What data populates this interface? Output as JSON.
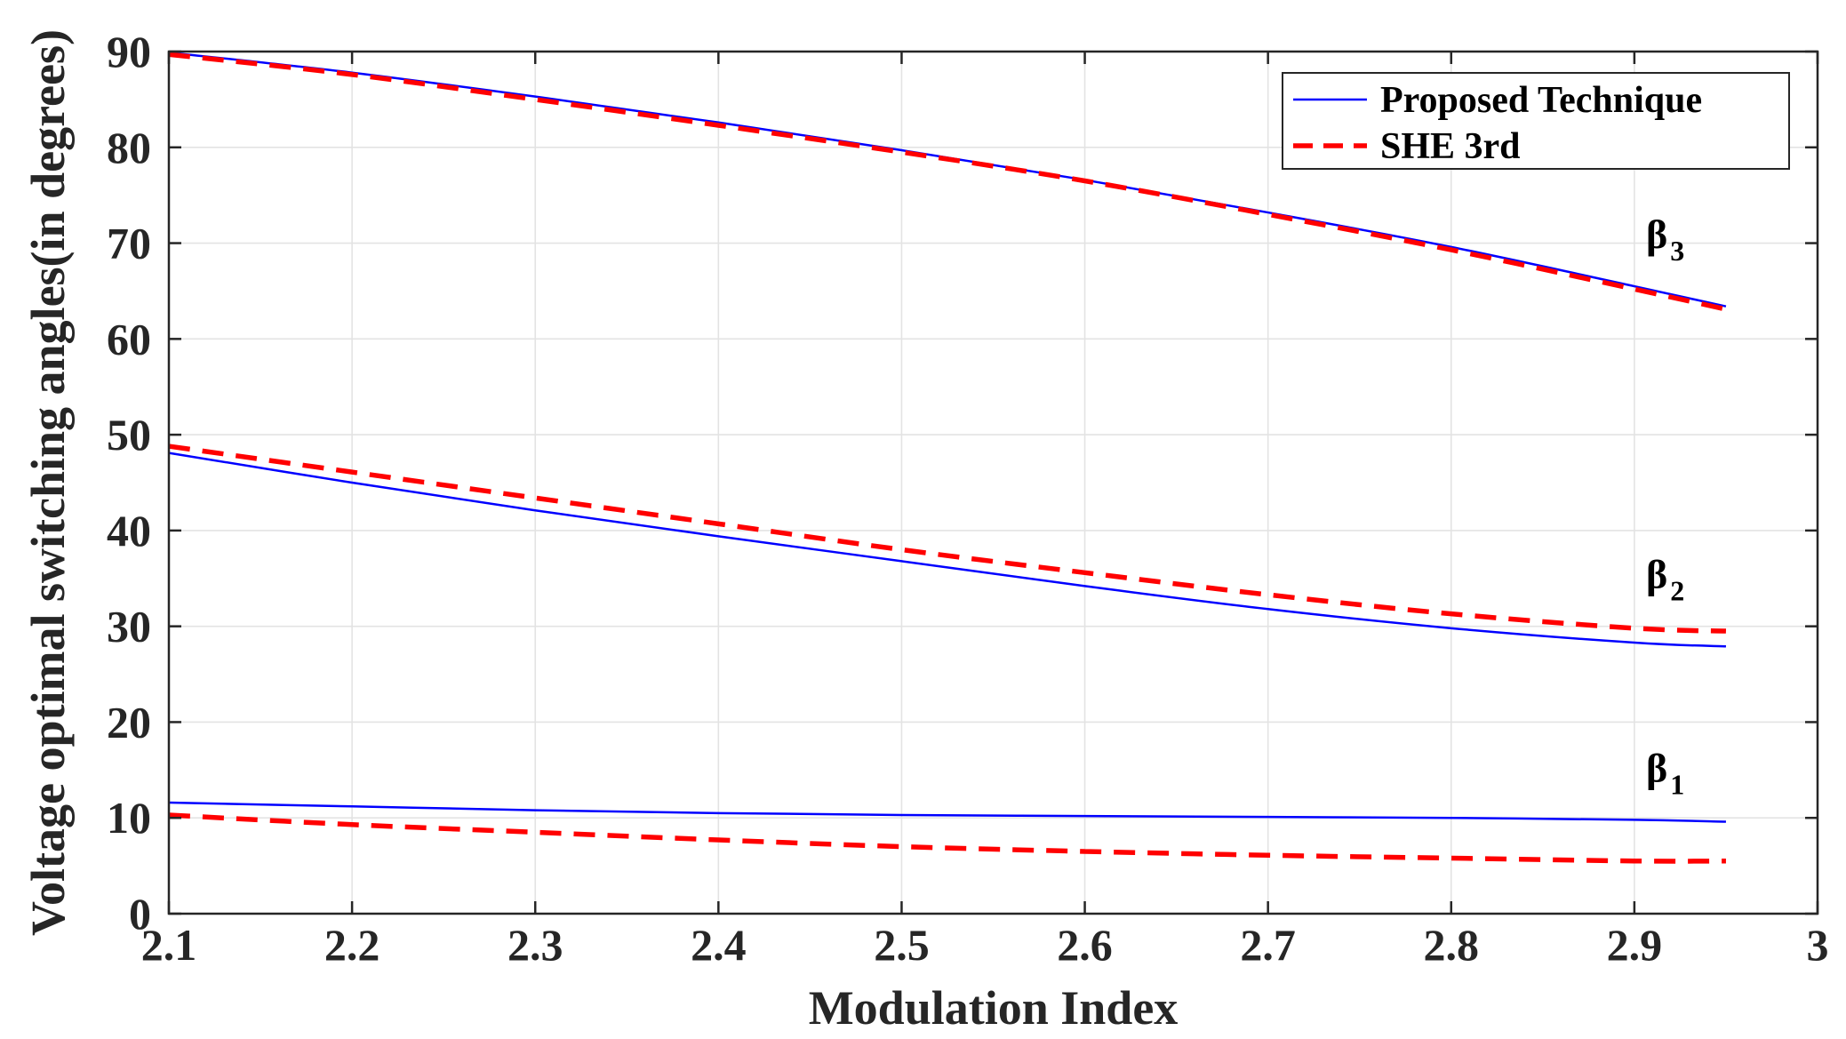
{
  "chart_data": {
    "type": "line",
    "title": "",
    "xlabel": "Modulation Index",
    "ylabel": "Voltage optimal switching angles(in degrees)",
    "xlim": [
      2.1,
      3.0
    ],
    "ylim": [
      0,
      90
    ],
    "grid": true,
    "x_ticks": [
      "2.1",
      "2.2",
      "2.3",
      "2.4",
      "2.5",
      "2.6",
      "2.7",
      "2.8",
      "2.9",
      "3"
    ],
    "y_ticks": [
      "0",
      "10",
      "20",
      "30",
      "40",
      "50",
      "60",
      "70",
      "80",
      "90"
    ],
    "legend_position": "top-right",
    "legend": [
      {
        "name": "Proposed Technique",
        "color": "#0000ff",
        "style": "solid"
      },
      {
        "name": "SHE 3rd",
        "color": "#ff0000",
        "style": "dashed"
      }
    ],
    "x": [
      2.1,
      2.2,
      2.3,
      2.4,
      2.5,
      2.6,
      2.7,
      2.8,
      2.9,
      2.95
    ],
    "series": [
      {
        "name": "Proposed Technique",
        "angle": "β1",
        "color": "#0000ff",
        "style": "solid",
        "values": [
          11.6,
          11.2,
          10.8,
          10.5,
          10.3,
          10.2,
          10.1,
          10.0,
          9.8,
          9.6
        ]
      },
      {
        "name": "Proposed Technique",
        "angle": "β2",
        "color": "#0000ff",
        "style": "solid",
        "values": [
          48.1,
          45.0,
          42.1,
          39.4,
          36.8,
          34.2,
          31.8,
          29.8,
          28.3,
          27.9
        ]
      },
      {
        "name": "Proposed Technique",
        "angle": "β3",
        "color": "#0000ff",
        "style": "solid",
        "values": [
          89.9,
          87.8,
          85.3,
          82.6,
          79.7,
          76.6,
          73.2,
          69.6,
          65.5,
          63.4
        ]
      },
      {
        "name": "SHE 3rd",
        "angle": "β1",
        "color": "#ff0000",
        "style": "dashed",
        "values": [
          10.3,
          9.3,
          8.5,
          7.7,
          7.0,
          6.5,
          6.1,
          5.8,
          5.5,
          5.5
        ]
      },
      {
        "name": "SHE 3rd",
        "angle": "β2",
        "color": "#ff0000",
        "style": "dashed",
        "values": [
          48.8,
          46.1,
          43.4,
          40.7,
          38.0,
          35.6,
          33.3,
          31.3,
          29.8,
          29.5
        ]
      },
      {
        "name": "SHE 3rd",
        "angle": "β3",
        "color": "#ff0000",
        "style": "dashed",
        "values": [
          89.7,
          87.6,
          85.0,
          82.3,
          79.5,
          76.5,
          73.0,
          69.3,
          65.2,
          63.1
        ]
      }
    ],
    "annotations": [
      {
        "base": "β",
        "sub": "3",
        "x": 2.95,
        "y": 69.5
      },
      {
        "base": "β",
        "sub": "2",
        "x": 2.95,
        "y": 34.0
      },
      {
        "base": "β",
        "sub": "1",
        "x": 2.95,
        "y": 13.8
      }
    ]
  }
}
